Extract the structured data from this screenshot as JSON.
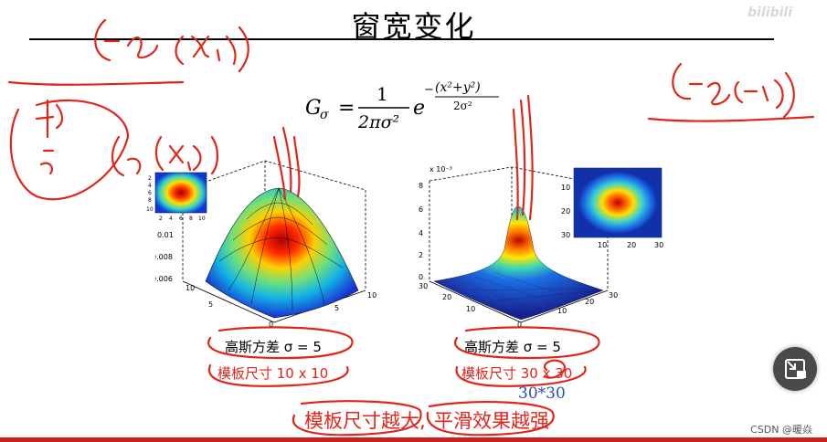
{
  "slide": {
    "title": "窗宽变化",
    "formula": {
      "lhs": "G",
      "sub": "σ",
      "num": "1",
      "den": "2πσ²",
      "base": "e",
      "exp_num": "(x²+y²)",
      "exp_den": "2σ²"
    },
    "left_plot": {
      "variance_label": "高斯方差  σ = 5",
      "template_label": "模板尺寸  10 x 10",
      "z_ticks": [
        "0.01",
        "0.008",
        "0.006"
      ],
      "x_ticks": [
        "10",
        "5",
        "0",
        "5",
        "10"
      ],
      "inset_ticks_x": [
        "2",
        "4",
        "6",
        "8",
        "10"
      ],
      "inset_ticks_y": [
        "2",
        "4",
        "6",
        "8",
        "10"
      ]
    },
    "right_plot": {
      "variance_label": "高斯方差  σ = 5",
      "template_label": "模板尺寸  30 x 30",
      "scale_label": "x 10⁻³",
      "z_ticks": [
        "8",
        "6",
        "4",
        "2",
        "0"
      ],
      "x_ticks": [
        "30",
        "20",
        "10",
        "0",
        "10",
        "20",
        "30"
      ],
      "inset_ticks_x": [
        "10",
        "20",
        "30"
      ],
      "inset_ticks_y": [
        "10",
        "20",
        "30"
      ]
    },
    "caption_part1": "模板尺寸越大,",
    "caption_part2": "平滑效果越强"
  },
  "annotations": {
    "handwritten_size": "30*30"
  },
  "overlay": {
    "watermark": "CSDN @暖焱",
    "brand": "bilibili",
    "pip_button_icon": "picture-in-picture-icon"
  },
  "colors": {
    "ink_red": "#e0261a",
    "ink_blue": "#2a4fb0",
    "accent_bar": "#c8211b"
  }
}
